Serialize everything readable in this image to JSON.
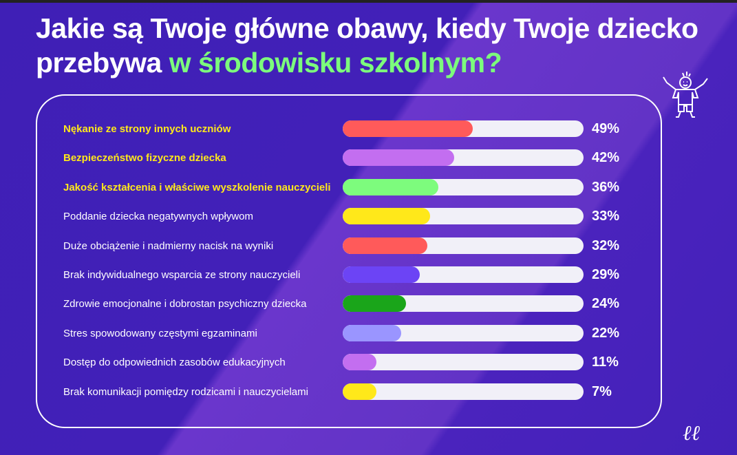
{
  "title": {
    "part1": "Jakie są Twoje główne obawy, kiedy Twoje dziecko przebywa ",
    "highlight": "w środowisku szkolnym?"
  },
  "chart_data": {
    "type": "bar",
    "orientation": "horizontal",
    "title": "Jakie są Twoje główne obawy, kiedy Twoje dziecko przebywa w środowisku szkolnym?",
    "unit": "%",
    "categories": [
      "Nękanie ze strony innych uczniów",
      "Bezpieczeństwo fizyczne dziecka",
      "Jakość kształcenia i właściwe wyszkolenie nauczycieli",
      "Poddanie dziecka negatywnych wpływom",
      "Duże obciążenie i nadmierny nacisk na wyniki",
      "Brak indywidualnego wsparcia ze strony nauczycieli",
      "Zdrowie emocjonalne i dobrostan psychiczny dziecka",
      "Stres spowodowany częstymi egzaminami",
      "Dostęp do odpowiednich zasobów edukacyjnych",
      "Brak komunikacji pomiędzy rodzicami i nauczycielami"
    ],
    "values": [
      49,
      42,
      36,
      33,
      32,
      29,
      24,
      22,
      11,
      7
    ],
    "labels": [
      "49%",
      "42%",
      "36%",
      "33%",
      "32%",
      "29%",
      "24%",
      "22%",
      "11%",
      "7%"
    ],
    "colors": [
      "#ff5a5a",
      "#c36ef0",
      "#7dfc7d",
      "#ffe81a",
      "#ff5a5a",
      "#6c44f5",
      "#1aa51a",
      "#9a95ff",
      "#c36ef0",
      "#ffe81a"
    ],
    "highlighted": [
      true,
      true,
      true,
      false,
      false,
      false,
      false,
      false,
      false,
      false
    ]
  }
}
